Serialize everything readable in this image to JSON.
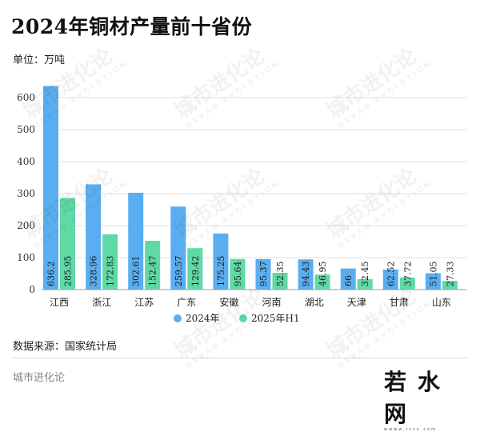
{
  "header": {
    "title": "2024年铜材产量前十省份",
    "unit": "单位：万吨"
  },
  "footer": {
    "source": "数据来源：国家统计局",
    "brand": "城市进化论",
    "logo": "若水网",
    "logo_sub": "wwww.rszx.com"
  },
  "watermark": {
    "text": "城市进化论",
    "sub": "URBAN EVOLUTION"
  },
  "chart_data": {
    "type": "bar",
    "categories": [
      "江西",
      "浙江",
      "江苏",
      "广东",
      "安徽",
      "河南",
      "湖北",
      "天津",
      "甘肃",
      "山东"
    ],
    "series": [
      {
        "name": "2024年",
        "values": [
          636.2,
          328.96,
          302.61,
          259.57,
          175.25,
          95.37,
          94.43,
          66,
          62.52,
          51.05
        ],
        "labels": [
          "636.2",
          "328.96",
          "302.61",
          "259.57",
          "175.25",
          "95.37",
          "94.43",
          "66",
          "62.52",
          "51.05"
        ],
        "color": "#5aaef0"
      },
      {
        "name": "2025年H1",
        "values": [
          285.95,
          172.83,
          152.47,
          129.42,
          95.64,
          52.35,
          46.95,
          32.45,
          37.72,
          27.33
        ],
        "labels": [
          "285.95",
          "172.83",
          "152.47",
          "129.42",
          "95.64",
          "52.35",
          "46.95",
          "32.45",
          "37.72",
          "27.33"
        ],
        "color": "#5fd9a6"
      }
    ],
    "yticks": [
      "0",
      "100",
      "200",
      "300",
      "400",
      "500",
      "600"
    ],
    "ylim": [
      0,
      660
    ],
    "grid": true,
    "legend": "bottom-center"
  }
}
